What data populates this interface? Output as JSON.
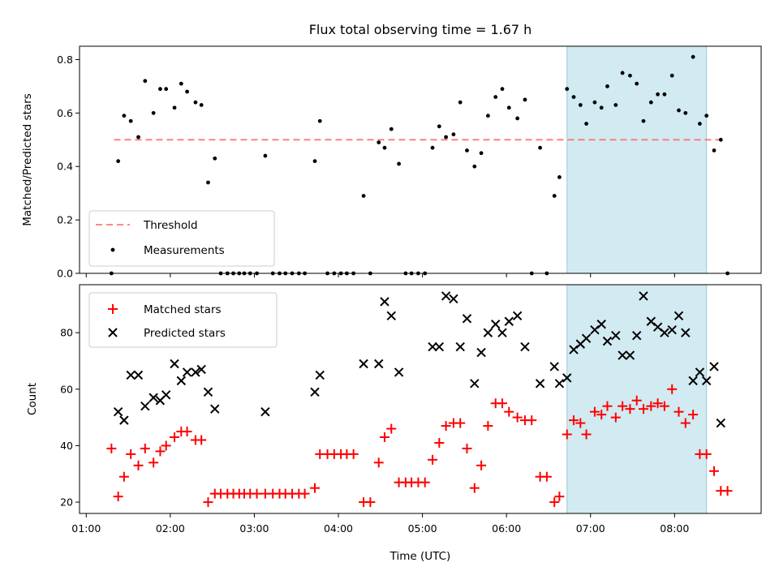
{
  "title": "Flux total observing time = 1.67 h",
  "xlabel": "Time (UTC)",
  "x_ticks": [
    "01:00",
    "02:00",
    "03:00",
    "04:00",
    "05:00",
    "06:00",
    "07:00",
    "08:00"
  ],
  "x_range_hours": [
    0.92,
    9.03
  ],
  "highlight_hours": [
    6.72,
    8.38
  ],
  "colors": {
    "threshold": "#ff7777",
    "measurements": "#000000",
    "matched": "#ff0000",
    "predicted": "#000000",
    "highlight": "#add8e6"
  },
  "chart_data": [
    {
      "type": "scatter",
      "ylabel": "Matched/Predicted stars",
      "ylim": [
        0,
        0.85
      ],
      "y_ticks": [
        "0.0",
        "0.2",
        "0.4",
        "0.6",
        "0.8"
      ],
      "threshold": 0.5,
      "threshold_x_range": [
        1.33,
        8.55
      ],
      "legend": [
        "Threshold",
        "Measurements"
      ],
      "legend_position": "lower-left",
      "series": [
        {
          "name": "Measurements",
          "points": [
            [
              1.3,
              0.0
            ],
            [
              1.38,
              0.42
            ],
            [
              1.45,
              0.59
            ],
            [
              1.53,
              0.57
            ],
            [
              1.62,
              0.51
            ],
            [
              1.7,
              0.72
            ],
            [
              1.8,
              0.6
            ],
            [
              1.88,
              0.69
            ],
            [
              1.95,
              0.69
            ],
            [
              2.05,
              0.62
            ],
            [
              2.13,
              0.71
            ],
            [
              2.2,
              0.68
            ],
            [
              2.3,
              0.64
            ],
            [
              2.37,
              0.63
            ],
            [
              2.45,
              0.34
            ],
            [
              2.53,
              0.43
            ],
            [
              2.6,
              0.0
            ],
            [
              2.68,
              0.0
            ],
            [
              2.75,
              0.0
            ],
            [
              2.82,
              0.0
            ],
            [
              2.88,
              0.0
            ],
            [
              2.95,
              0.0
            ],
            [
              3.03,
              0.0
            ],
            [
              3.13,
              0.44
            ],
            [
              3.22,
              0.0
            ],
            [
              3.3,
              0.0
            ],
            [
              3.37,
              0.0
            ],
            [
              3.45,
              0.0
            ],
            [
              3.53,
              0.0
            ],
            [
              3.6,
              0.0
            ],
            [
              3.72,
              0.42
            ],
            [
              3.78,
              0.57
            ],
            [
              3.87,
              0.0
            ],
            [
              3.95,
              0.0
            ],
            [
              4.03,
              0.0
            ],
            [
              4.1,
              0.0
            ],
            [
              4.18,
              0.0
            ],
            [
              4.3,
              0.29
            ],
            [
              4.38,
              0.0
            ],
            [
              4.48,
              0.49
            ],
            [
              4.55,
              0.47
            ],
            [
              4.63,
              0.54
            ],
            [
              4.72,
              0.41
            ],
            [
              4.8,
              0.0
            ],
            [
              4.87,
              0.0
            ],
            [
              4.95,
              0.0
            ],
            [
              5.03,
              0.0
            ],
            [
              5.12,
              0.47
            ],
            [
              5.2,
              0.55
            ],
            [
              5.28,
              0.51
            ],
            [
              5.37,
              0.52
            ],
            [
              5.45,
              0.64
            ],
            [
              5.53,
              0.46
            ],
            [
              5.62,
              0.4
            ],
            [
              5.7,
              0.45
            ],
            [
              5.78,
              0.59
            ],
            [
              5.87,
              0.66
            ],
            [
              5.95,
              0.69
            ],
            [
              6.03,
              0.62
            ],
            [
              6.13,
              0.58
            ],
            [
              6.22,
              0.65
            ],
            [
              6.3,
              0.0
            ],
            [
              6.4,
              0.47
            ],
            [
              6.48,
              0.0
            ],
            [
              6.57,
              0.29
            ],
            [
              6.63,
              0.36
            ],
            [
              6.72,
              0.69
            ],
            [
              6.8,
              0.66
            ],
            [
              6.88,
              0.63
            ],
            [
              6.95,
              0.56
            ],
            [
              7.05,
              0.64
            ],
            [
              7.13,
              0.62
            ],
            [
              7.2,
              0.7
            ],
            [
              7.3,
              0.63
            ],
            [
              7.38,
              0.75
            ],
            [
              7.47,
              0.74
            ],
            [
              7.55,
              0.71
            ],
            [
              7.63,
              0.57
            ],
            [
              7.72,
              0.64
            ],
            [
              7.8,
              0.67
            ],
            [
              7.88,
              0.67
            ],
            [
              7.97,
              0.74
            ],
            [
              8.05,
              0.61
            ],
            [
              8.13,
              0.6
            ],
            [
              8.22,
              0.81
            ],
            [
              8.3,
              0.56
            ],
            [
              8.38,
              0.59
            ],
            [
              8.47,
              0.46
            ],
            [
              8.55,
              0.5
            ],
            [
              8.63,
              0.0
            ]
          ]
        }
      ]
    },
    {
      "type": "scatter",
      "ylabel": "Count",
      "ylim": [
        16,
        97
      ],
      "y_ticks": [
        "20",
        "40",
        "60",
        "80"
      ],
      "legend": [
        "Matched stars",
        "Predicted stars"
      ],
      "legend_position": "upper-left",
      "series": [
        {
          "name": "Matched stars",
          "marker": "plus",
          "points": [
            [
              1.3,
              39
            ],
            [
              1.38,
              22
            ],
            [
              1.45,
              29
            ],
            [
              1.53,
              37
            ],
            [
              1.62,
              33
            ],
            [
              1.7,
              39
            ],
            [
              1.8,
              34
            ],
            [
              1.88,
              38
            ],
            [
              1.95,
              40
            ],
            [
              2.05,
              43
            ],
            [
              2.13,
              45
            ],
            [
              2.2,
              45
            ],
            [
              2.3,
              42
            ],
            [
              2.37,
              42
            ],
            [
              2.45,
              20
            ],
            [
              2.53,
              23
            ],
            [
              2.6,
              23
            ],
            [
              2.68,
              23
            ],
            [
              2.75,
              23
            ],
            [
              2.82,
              23
            ],
            [
              2.88,
              23
            ],
            [
              2.95,
              23
            ],
            [
              3.03,
              23
            ],
            [
              3.13,
              23
            ],
            [
              3.22,
              23
            ],
            [
              3.3,
              23
            ],
            [
              3.37,
              23
            ],
            [
              3.45,
              23
            ],
            [
              3.53,
              23
            ],
            [
              3.6,
              23
            ],
            [
              3.72,
              25
            ],
            [
              3.78,
              37
            ],
            [
              3.87,
              37
            ],
            [
              3.95,
              37
            ],
            [
              4.03,
              37
            ],
            [
              4.1,
              37
            ],
            [
              4.18,
              37
            ],
            [
              4.3,
              20
            ],
            [
              4.38,
              20
            ],
            [
              4.48,
              34
            ],
            [
              4.55,
              43
            ],
            [
              4.63,
              46
            ],
            [
              4.72,
              27
            ],
            [
              4.8,
              27
            ],
            [
              4.87,
              27
            ],
            [
              4.95,
              27
            ],
            [
              5.03,
              27
            ],
            [
              5.12,
              35
            ],
            [
              5.2,
              41
            ],
            [
              5.28,
              47
            ],
            [
              5.37,
              48
            ],
            [
              5.45,
              48
            ],
            [
              5.53,
              39
            ],
            [
              5.62,
              25
            ],
            [
              5.7,
              33
            ],
            [
              5.78,
              47
            ],
            [
              5.87,
              55
            ],
            [
              5.95,
              55
            ],
            [
              6.03,
              52
            ],
            [
              6.13,
              50
            ],
            [
              6.22,
              49
            ],
            [
              6.3,
              49
            ],
            [
              6.4,
              29
            ],
            [
              6.48,
              29
            ],
            [
              6.57,
              20
            ],
            [
              6.63,
              22
            ],
            [
              6.72,
              44
            ],
            [
              6.8,
              49
            ],
            [
              6.88,
              48
            ],
            [
              6.95,
              44
            ],
            [
              7.05,
              52
            ],
            [
              7.13,
              51
            ],
            [
              7.2,
              54
            ],
            [
              7.3,
              50
            ],
            [
              7.38,
              54
            ],
            [
              7.47,
              53
            ],
            [
              7.55,
              56
            ],
            [
              7.63,
              53
            ],
            [
              7.72,
              54
            ],
            [
              7.8,
              55
            ],
            [
              7.88,
              54
            ],
            [
              7.97,
              60
            ],
            [
              8.05,
              52
            ],
            [
              8.13,
              48
            ],
            [
              8.22,
              51
            ],
            [
              8.3,
              37
            ],
            [
              8.38,
              37
            ],
            [
              8.47,
              31
            ],
            [
              8.55,
              24
            ],
            [
              8.63,
              24
            ]
          ]
        },
        {
          "name": "Predicted stars",
          "marker": "x",
          "points": [
            [
              1.38,
              52
            ],
            [
              1.45,
              49
            ],
            [
              1.53,
              65
            ],
            [
              1.62,
              65
            ],
            [
              1.7,
              54
            ],
            [
              1.8,
              57
            ],
            [
              1.88,
              56
            ],
            [
              1.95,
              58
            ],
            [
              2.05,
              69
            ],
            [
              2.13,
              63
            ],
            [
              2.2,
              66
            ],
            [
              2.3,
              66
            ],
            [
              2.37,
              67
            ],
            [
              2.45,
              59
            ],
            [
              2.53,
              53
            ],
            [
              3.13,
              52
            ],
            [
              3.72,
              59
            ],
            [
              3.78,
              65
            ],
            [
              4.3,
              69
            ],
            [
              4.48,
              69
            ],
            [
              4.55,
              91
            ],
            [
              4.63,
              86
            ],
            [
              4.72,
              66
            ],
            [
              5.12,
              75
            ],
            [
              5.2,
              75
            ],
            [
              5.28,
              93
            ],
            [
              5.37,
              92
            ],
            [
              5.45,
              75
            ],
            [
              5.53,
              85
            ],
            [
              5.62,
              62
            ],
            [
              5.7,
              73
            ],
            [
              5.78,
              80
            ],
            [
              5.87,
              83
            ],
            [
              5.95,
              80
            ],
            [
              6.03,
              84
            ],
            [
              6.13,
              86
            ],
            [
              6.22,
              75
            ],
            [
              6.4,
              62
            ],
            [
              6.57,
              68
            ],
            [
              6.63,
              62
            ],
            [
              6.72,
              64
            ],
            [
              6.8,
              74
            ],
            [
              6.88,
              76
            ],
            [
              6.95,
              78
            ],
            [
              7.05,
              81
            ],
            [
              7.13,
              83
            ],
            [
              7.2,
              77
            ],
            [
              7.3,
              79
            ],
            [
              7.38,
              72
            ],
            [
              7.47,
              72
            ],
            [
              7.55,
              79
            ],
            [
              7.63,
              93
            ],
            [
              7.72,
              84
            ],
            [
              7.8,
              82
            ],
            [
              7.88,
              80
            ],
            [
              7.97,
              81
            ],
            [
              8.05,
              86
            ],
            [
              8.13,
              80
            ],
            [
              8.22,
              63
            ],
            [
              8.3,
              66
            ],
            [
              8.38,
              63
            ],
            [
              8.47,
              68
            ],
            [
              8.55,
              48
            ]
          ]
        }
      ]
    }
  ]
}
